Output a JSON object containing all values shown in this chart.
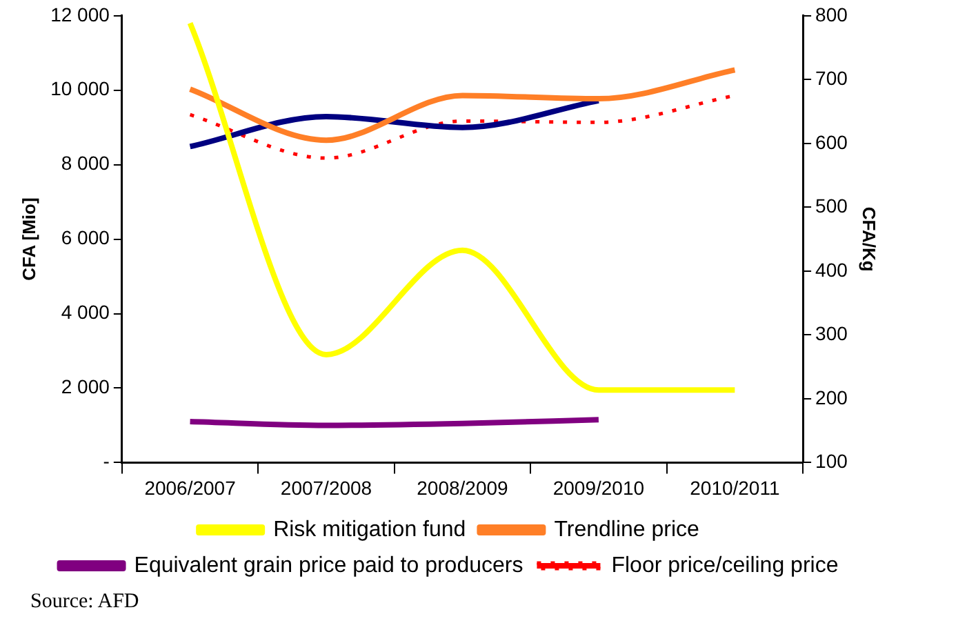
{
  "chart_data": {
    "type": "line",
    "ylabel": "CFA [Mio]",
    "y2label": "CFA/Kg",
    "categories": [
      "2006/2007",
      "2007/2008",
      "2008/2009",
      "2009/2010",
      "2010/2011"
    ],
    "series": [
      {
        "name": "Risk mitigation fund",
        "color": "#ffff00",
        "values": [
          11800,
          2900,
          5700,
          1950,
          1950
        ]
      },
      {
        "name": "Trendline price",
        "color": "#ff7f27",
        "axis": "y2",
        "values": [
          685,
          605,
          675,
          670,
          715
        ]
      },
      {
        "name": "Equivalent grain price paid to producers",
        "color": "#800080",
        "values": [
          1100,
          1000,
          1050,
          1150,
          null
        ]
      },
      {
        "color": "#000080",
        "axis": "y2",
        "values": [
          595,
          642,
          625,
          667,
          null
        ]
      },
      {
        "name": "Floor price/ceiling price",
        "color": "#ff0000",
        "axis": "y2",
        "line_style": "dotted",
        "values": [
          645,
          577,
          635,
          633,
          675
        ]
      }
    ],
    "ylim": [
      0,
      12000
    ],
    "yticks": [
      {
        "value": 0,
        "label": "-"
      },
      {
        "value": 2000,
        "label": "2 000"
      },
      {
        "value": 4000,
        "label": "4 000"
      },
      {
        "value": 6000,
        "label": "6 000"
      },
      {
        "value": 8000,
        "label": "8 000"
      },
      {
        "value": 10000,
        "label": "10 000"
      },
      {
        "value": 12000,
        "label": "12 000"
      }
    ],
    "y2lim": [
      100,
      800
    ],
    "y2ticks": [
      100,
      200,
      300,
      400,
      500,
      600,
      700,
      800
    ],
    "grid": false,
    "legend": "bottom",
    "marker": "none",
    "annotations": [
      "Source: AFD"
    ]
  }
}
